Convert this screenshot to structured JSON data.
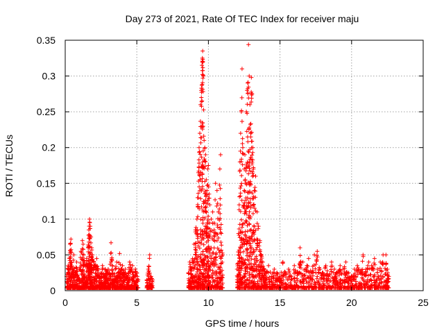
{
  "chart_data": {
    "type": "scatter",
    "title": "Day 273 of 2021, Rate Of TEC Index for receiver maju",
    "xlabel": "GPS time / hours",
    "ylabel": "ROTI / TECUs",
    "xlim": [
      0,
      25
    ],
    "ylim": [
      0,
      0.35
    ],
    "x_ticks": [
      0,
      5,
      10,
      15,
      20,
      25
    ],
    "x_tick_labels": [
      "0",
      "5",
      "10",
      "15",
      "20",
      "25"
    ],
    "y_ticks": [
      0,
      0.05,
      0.1,
      0.15,
      0.2,
      0.25,
      0.3,
      0.35
    ],
    "y_tick_labels": [
      "0",
      "0.05",
      "0.1",
      "0.15",
      "0.2",
      "0.25",
      "0.3",
      "0.35"
    ],
    "grid": true,
    "marker": "+",
    "color": "#ff0000",
    "series": [
      {
        "name": "ROTI",
        "points": [
          [
            0.1,
            0.02
          ],
          [
            0.2,
            0.035
          ],
          [
            0.3,
            0.045
          ],
          [
            0.35,
            0.065
          ],
          [
            0.4,
            0.072
          ],
          [
            0.5,
            0.03
          ],
          [
            0.6,
            0.05
          ],
          [
            0.7,
            0.025
          ],
          [
            0.8,
            0.04
          ],
          [
            0.9,
            0.018
          ],
          [
            1.0,
            0.03
          ],
          [
            1.1,
            0.055
          ],
          [
            1.2,
            0.07
          ],
          [
            1.25,
            0.065
          ],
          [
            1.3,
            0.05
          ],
          [
            1.4,
            0.035
          ],
          [
            1.5,
            0.045
          ],
          [
            1.6,
            0.06
          ],
          [
            1.65,
            0.085
          ],
          [
            1.7,
            0.1
          ],
          [
            1.72,
            0.095
          ],
          [
            1.75,
            0.09
          ],
          [
            1.8,
            0.075
          ],
          [
            1.85,
            0.06
          ],
          [
            1.9,
            0.05
          ],
          [
            2.0,
            0.04
          ],
          [
            2.1,
            0.035
          ],
          [
            2.2,
            0.045
          ],
          [
            2.3,
            0.03
          ],
          [
            2.4,
            0.02
          ],
          [
            2.5,
            0.025
          ],
          [
            2.6,
            0.035
          ],
          [
            2.7,
            0.02
          ],
          [
            2.8,
            0.03
          ],
          [
            2.9,
            0.025
          ],
          [
            3.0,
            0.03
          ],
          [
            3.1,
            0.025
          ],
          [
            3.2,
            0.067
          ],
          [
            3.3,
            0.035
          ],
          [
            3.4,
            0.02
          ],
          [
            3.5,
            0.03
          ],
          [
            3.6,
            0.04
          ],
          [
            3.7,
            0.025
          ],
          [
            3.8,
            0.052
          ],
          [
            3.9,
            0.03
          ],
          [
            4.0,
            0.035
          ],
          [
            4.1,
            0.025
          ],
          [
            4.2,
            0.03
          ],
          [
            4.3,
            0.02
          ],
          [
            4.4,
            0.025
          ],
          [
            4.5,
            0.04
          ],
          [
            4.6,
            0.03
          ],
          [
            4.7,
            0.035
          ],
          [
            4.8,
            0.02
          ],
          [
            4.9,
            0.03
          ],
          [
            5.0,
            0.025
          ],
          [
            5.1,
            0.015
          ],
          [
            5.7,
            0.015
          ],
          [
            5.8,
            0.03
          ],
          [
            5.9,
            0.05
          ],
          [
            6.0,
            0.02
          ],
          [
            6.1,
            0.015
          ],
          [
            8.6,
            0.025
          ],
          [
            8.7,
            0.04
          ],
          [
            8.8,
            0.03
          ],
          [
            8.9,
            0.045
          ],
          [
            9.0,
            0.065
          ],
          [
            9.1,
            0.085
          ],
          [
            9.2,
            0.1
          ],
          [
            9.25,
            0.13
          ],
          [
            9.3,
            0.165
          ],
          [
            9.35,
            0.2
          ],
          [
            9.4,
            0.22
          ],
          [
            9.45,
            0.26
          ],
          [
            9.5,
            0.28
          ],
          [
            9.55,
            0.315
          ],
          [
            9.58,
            0.325
          ],
          [
            9.6,
            0.335
          ],
          [
            9.62,
            0.32
          ],
          [
            9.65,
            0.3
          ],
          [
            9.7,
            0.21
          ],
          [
            9.75,
            0.2
          ],
          [
            9.8,
            0.19
          ],
          [
            9.85,
            0.155
          ],
          [
            9.9,
            0.14
          ],
          [
            9.95,
            0.17
          ],
          [
            10.0,
            0.175
          ],
          [
            10.05,
            0.135
          ],
          [
            10.1,
            0.12
          ],
          [
            10.2,
            0.1
          ],
          [
            10.3,
            0.11
          ],
          [
            10.4,
            0.085
          ],
          [
            10.5,
            0.15
          ],
          [
            10.6,
            0.14
          ],
          [
            10.7,
            0.11
          ],
          [
            10.8,
            0.17
          ],
          [
            10.85,
            0.19
          ],
          [
            10.9,
            0.08
          ],
          [
            11.0,
            0.05
          ],
          [
            12.0,
            0.03
          ],
          [
            12.1,
            0.08
          ],
          [
            12.15,
            0.12
          ],
          [
            12.2,
            0.18
          ],
          [
            12.25,
            0.22
          ],
          [
            12.3,
            0.25
          ],
          [
            12.35,
            0.31
          ],
          [
            12.4,
            0.2
          ],
          [
            12.5,
            0.17
          ],
          [
            12.55,
            0.19
          ],
          [
            12.6,
            0.15
          ],
          [
            12.65,
            0.25
          ],
          [
            12.7,
            0.28
          ],
          [
            12.75,
            0.29
          ],
          [
            12.8,
            0.344
          ],
          [
            12.85,
            0.3
          ],
          [
            12.9,
            0.26
          ],
          [
            12.95,
            0.22
          ],
          [
            13.0,
            0.298
          ],
          [
            13.05,
            0.275
          ],
          [
            13.1,
            0.2
          ],
          [
            13.15,
            0.17
          ],
          [
            13.2,
            0.14
          ],
          [
            13.3,
            0.16
          ],
          [
            13.4,
            0.11
          ],
          [
            13.5,
            0.09
          ],
          [
            13.6,
            0.07
          ],
          [
            13.7,
            0.05
          ],
          [
            13.8,
            0.04
          ],
          [
            13.9,
            0.03
          ],
          [
            14.0,
            0.025
          ],
          [
            14.2,
            0.035
          ],
          [
            14.4,
            0.02
          ],
          [
            14.6,
            0.03
          ],
          [
            14.8,
            0.025
          ],
          [
            15.0,
            0.02
          ],
          [
            15.2,
            0.04
          ],
          [
            15.4,
            0.025
          ],
          [
            15.6,
            0.03
          ],
          [
            15.8,
            0.02
          ],
          [
            16.0,
            0.035
          ],
          [
            16.2,
            0.025
          ],
          [
            16.4,
            0.06
          ],
          [
            16.6,
            0.04
          ],
          [
            16.8,
            0.03
          ],
          [
            17.0,
            0.045
          ],
          [
            17.2,
            0.025
          ],
          [
            17.4,
            0.05
          ],
          [
            17.6,
            0.055
          ],
          [
            17.8,
            0.03
          ],
          [
            18.0,
            0.025
          ],
          [
            18.2,
            0.035
          ],
          [
            18.4,
            0.02
          ],
          [
            18.6,
            0.04
          ],
          [
            18.8,
            0.03
          ],
          [
            19.0,
            0.025
          ],
          [
            19.2,
            0.035
          ],
          [
            19.4,
            0.03
          ],
          [
            19.6,
            0.04
          ],
          [
            19.8,
            0.025
          ],
          [
            20.0,
            0.02
          ],
          [
            20.2,
            0.03
          ],
          [
            20.4,
            0.035
          ],
          [
            20.6,
            0.025
          ],
          [
            20.8,
            0.05
          ],
          [
            21.0,
            0.03
          ],
          [
            21.2,
            0.04
          ],
          [
            21.4,
            0.035
          ],
          [
            21.6,
            0.045
          ],
          [
            21.8,
            0.03
          ],
          [
            22.0,
            0.04
          ],
          [
            22.2,
            0.05
          ],
          [
            22.4,
            0.05
          ],
          [
            22.5,
            0.03
          ],
          [
            22.6,
            0.02
          ]
        ]
      }
    ]
  }
}
